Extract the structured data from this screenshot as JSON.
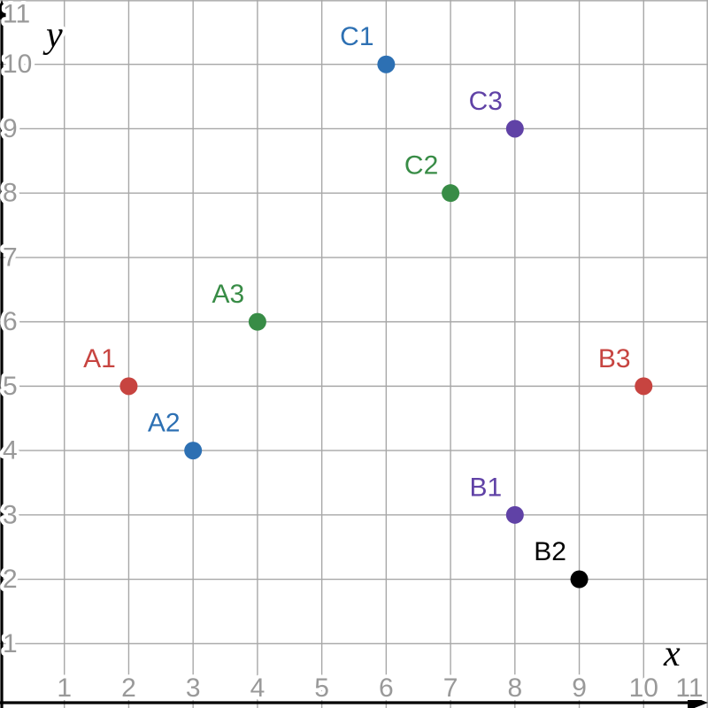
{
  "chart_data": {
    "type": "scatter",
    "title": "",
    "xlabel": "x",
    "ylabel": "y",
    "xlim": [
      0,
      11
    ],
    "ylim": [
      0,
      11
    ],
    "x_ticks": [
      1,
      2,
      3,
      4,
      5,
      6,
      7,
      8,
      9,
      10,
      11
    ],
    "y_ticks": [
      1,
      2,
      3,
      4,
      5,
      6,
      7,
      8,
      9,
      10,
      11
    ],
    "grid": true,
    "legend": "none",
    "points": [
      {
        "label": "A1",
        "x": 2,
        "y": 5,
        "color": "#c74440"
      },
      {
        "label": "A2",
        "x": 3,
        "y": 4,
        "color": "#2d70b3"
      },
      {
        "label": "A3",
        "x": 4,
        "y": 6,
        "color": "#388c46"
      },
      {
        "label": "B1",
        "x": 8,
        "y": 3,
        "color": "#6042a6"
      },
      {
        "label": "B2",
        "x": 9,
        "y": 2,
        "color": "#000000"
      },
      {
        "label": "B3",
        "x": 10,
        "y": 5,
        "color": "#c74440"
      },
      {
        "label": "C1",
        "x": 6,
        "y": 10,
        "color": "#2d70b3"
      },
      {
        "label": "C2",
        "x": 7,
        "y": 8,
        "color": "#388c46"
      },
      {
        "label": "C3",
        "x": 8,
        "y": 9,
        "color": "#6042a6"
      }
    ],
    "colors": {
      "background": "#ffffff",
      "grid": "#a7a7a7",
      "tick_label": "#999999",
      "axis": "#000000",
      "halo": "#ffffff"
    }
  }
}
